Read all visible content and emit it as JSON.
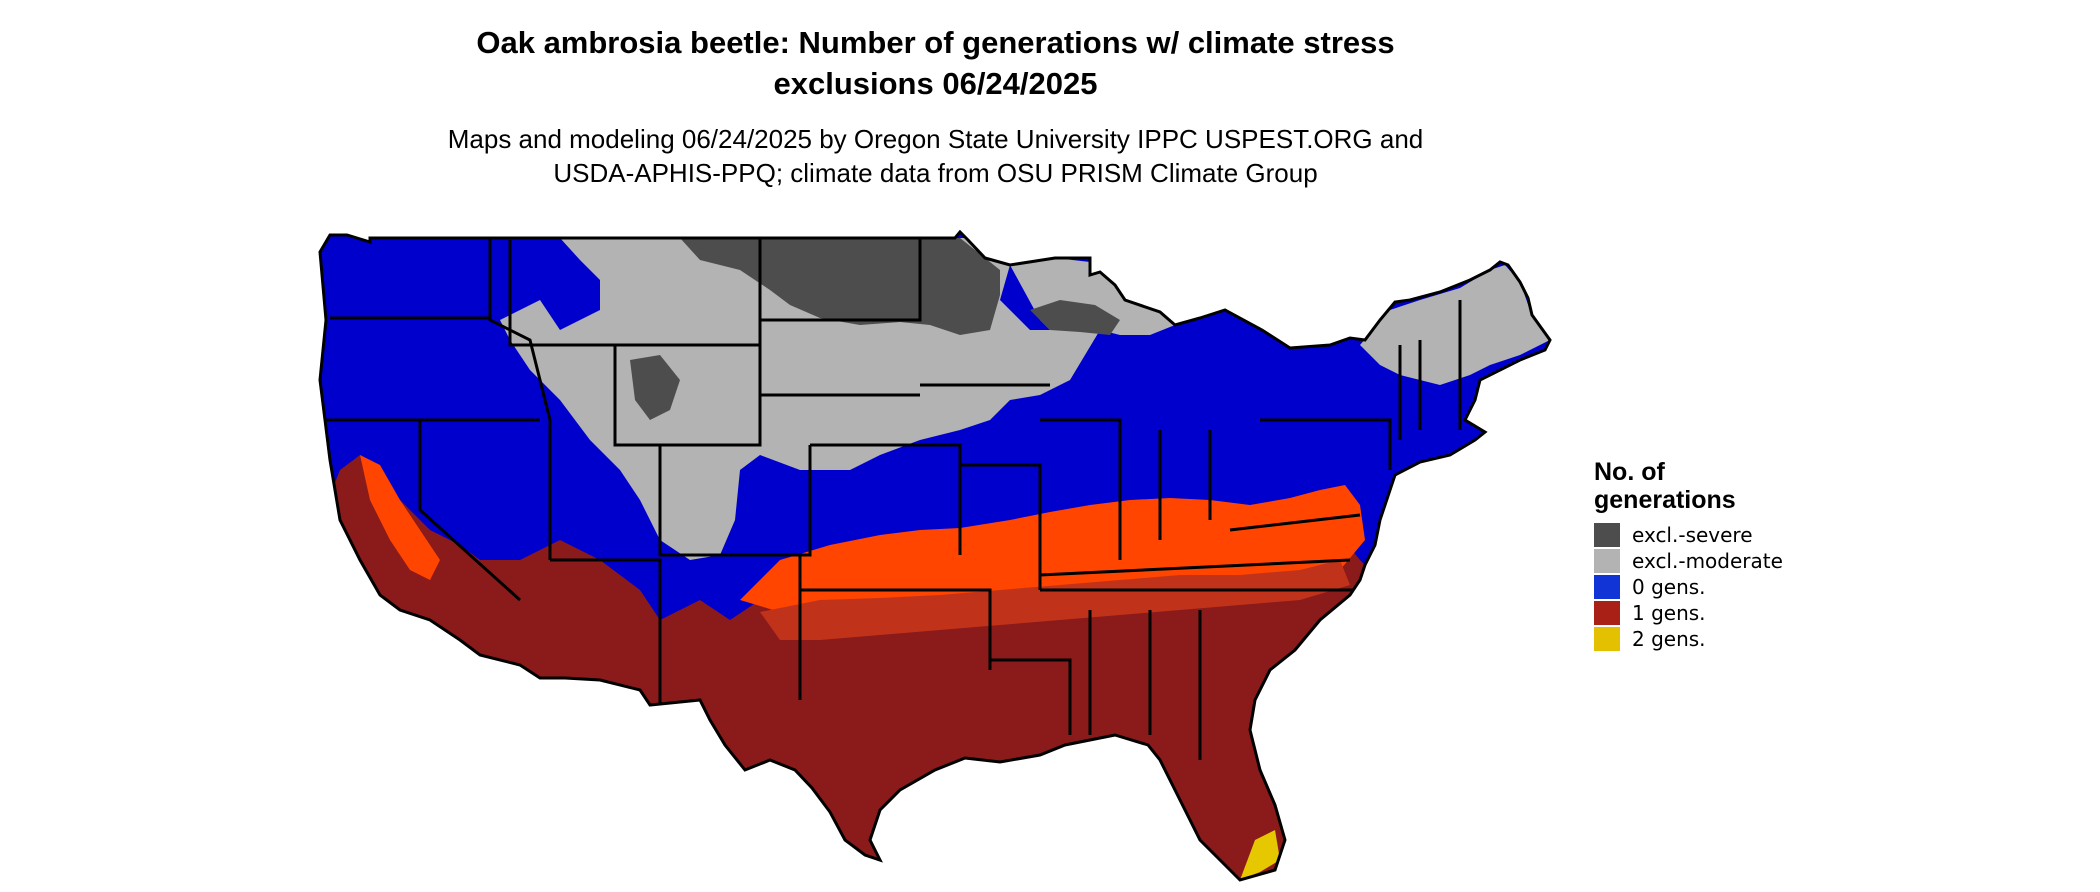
{
  "title_line1": "Oak ambrosia beetle: Number of generations w/ climate stress",
  "title_line2": "exclusions 06/24/2025",
  "subtitle_line1": "Maps and modeling 06/24/2025 by Oregon State University IPPC USPEST.ORG and",
  "subtitle_line2": "USDA-APHIS-PPQ; climate data from OSU PRISM Climate Group",
  "legend": {
    "title_line1": "No. of",
    "title_line2": "generations",
    "items": [
      {
        "label": "excl.-severe",
        "color": "#4d4d4d"
      },
      {
        "label": "excl.-moderate",
        "color": "#b3b3b3"
      },
      {
        "label": "0 gens.",
        "color": "#1034d6"
      },
      {
        "label": "1 gens.",
        "color": "#a82016"
      },
      {
        "label": "2 gens.",
        "color": "#e3c100"
      }
    ]
  },
  "map_colors": {
    "excl_severe": "#4d4d4d",
    "excl_moderate": "#b3b3b3",
    "zero_gens": "#0000cc",
    "one_gen_dark": "#8b1a1a",
    "one_gen_mid": "#c0331a",
    "one_gen_orange": "#ff4500",
    "two_gens": "#e6c800",
    "borders": "#000000"
  }
}
